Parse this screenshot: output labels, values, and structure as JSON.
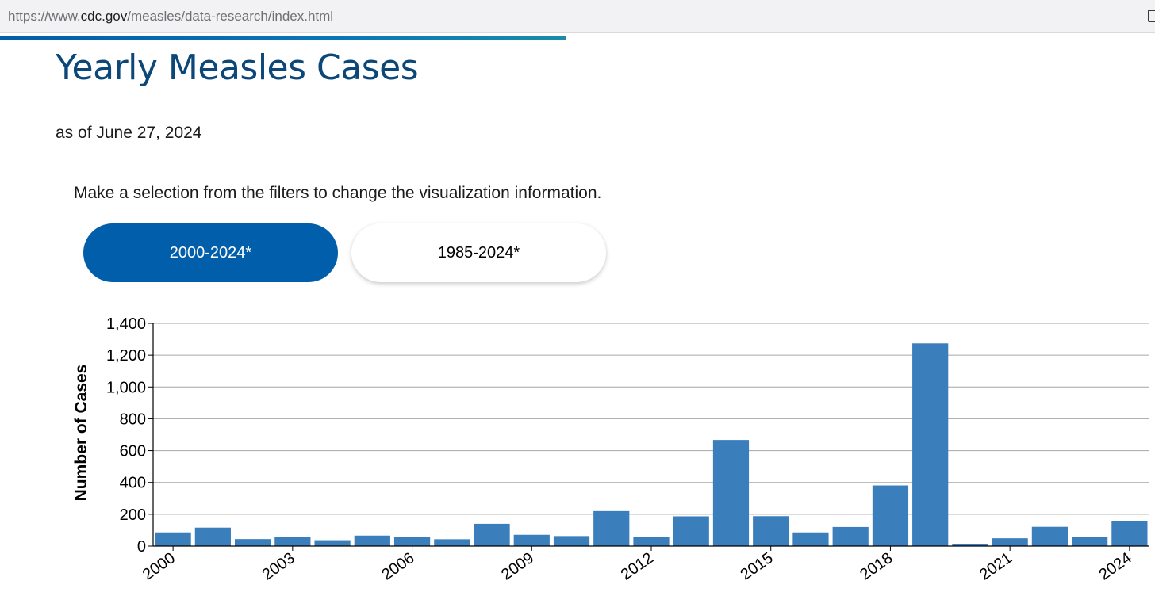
{
  "browser": {
    "url_prefix": "https://www.",
    "url_host": "cdc.gov",
    "url_path": "/measles/data-research/index.html",
    "scroll_progress": 0.49
  },
  "page": {
    "title": "Yearly Measles Cases",
    "as_of": "as of June 27, 2024",
    "instruction": "Make a selection from the filters to change the visualization information."
  },
  "filters": {
    "options": [
      "2000-2024*",
      "1985-2024*"
    ],
    "selected": "2000-2024*"
  },
  "colors": {
    "bar": "#3a7ebb",
    "active_button": "#005eaa",
    "title": "#0b4778"
  },
  "chart_data": {
    "type": "bar",
    "title": "",
    "xlabel": "",
    "ylabel": "Number of Cases",
    "ylim": [
      0,
      1400
    ],
    "yticks": [
      0,
      200,
      400,
      600,
      800,
      1000,
      1200,
      1400
    ],
    "ytick_labels": [
      "0",
      "200",
      "400",
      "600",
      "800",
      "1,000",
      "1,200",
      "1,400"
    ],
    "categories": [
      "2000",
      "2001",
      "2002",
      "2003",
      "2004",
      "2005",
      "2006",
      "2007",
      "2008",
      "2009",
      "2010",
      "2011",
      "2012",
      "2013",
      "2014",
      "2015",
      "2016",
      "2017",
      "2018",
      "2019",
      "2020",
      "2021",
      "2022",
      "2023",
      "2024"
    ],
    "xtick_labels": [
      "2000",
      "2003",
      "2006",
      "2009",
      "2012",
      "2015",
      "2018",
      "2021",
      "2024"
    ],
    "values": [
      86,
      116,
      44,
      56,
      37,
      66,
      55,
      43,
      140,
      71,
      63,
      220,
      55,
      187,
      667,
      188,
      86,
      120,
      381,
      1274,
      13,
      49,
      121,
      59,
      159
    ],
    "grid": "horizontal"
  }
}
